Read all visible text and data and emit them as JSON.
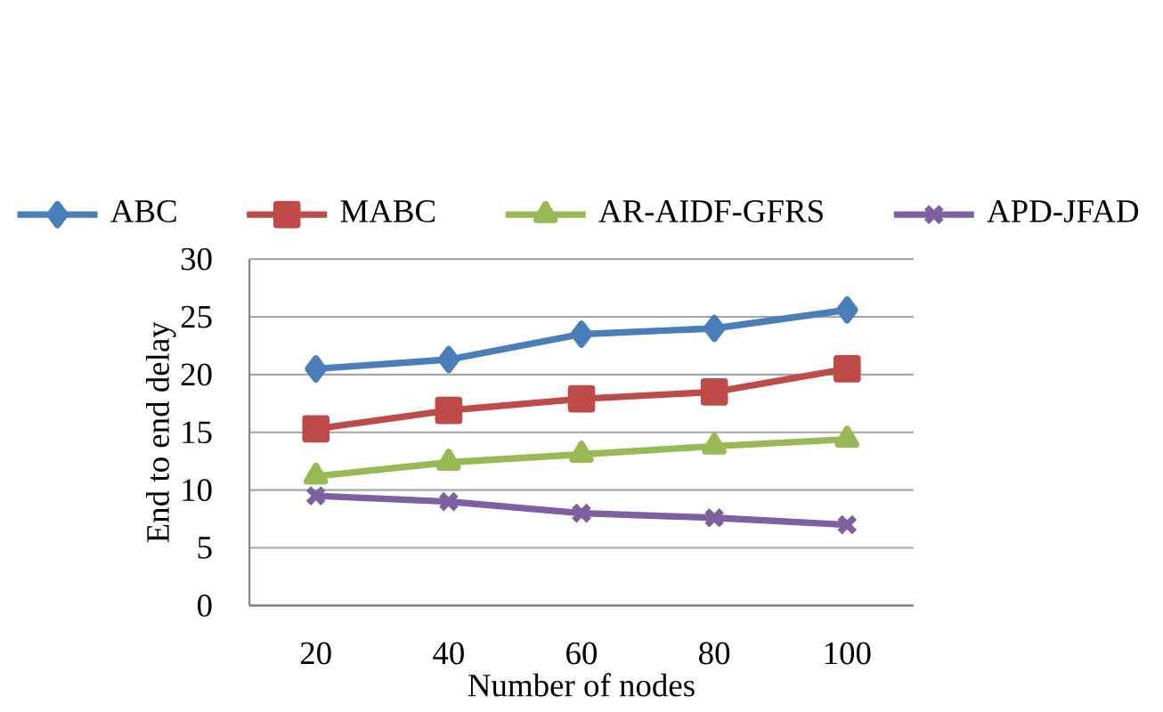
{
  "chart_data": {
    "type": "line",
    "xlabel": "Number of nodes",
    "ylabel": "End to end delay",
    "categories": [
      "20",
      "40",
      "60",
      "80",
      "100"
    ],
    "series": [
      {
        "name": "ABC",
        "color": "#4a7ebb",
        "marker": "diamond",
        "values": [
          20.5,
          21.3,
          23.5,
          24.0,
          25.6
        ]
      },
      {
        "name": "MABC",
        "color": "#be4b48",
        "marker": "square",
        "values": [
          15.3,
          16.9,
          17.9,
          18.5,
          20.5
        ]
      },
      {
        "name": "AR-AIDF-GFRS",
        "color": "#98b954",
        "marker": "triangle",
        "values": [
          11.2,
          12.4,
          13.1,
          13.8,
          14.4
        ]
      },
      {
        "name": "APD-JFAD",
        "color": "#7d60a0",
        "marker": "cross",
        "values": [
          9.5,
          9.0,
          8.0,
          7.6,
          7.0
        ]
      }
    ],
    "ylim": [
      0,
      30
    ],
    "yticks": [
      0,
      5,
      10,
      15,
      20,
      25,
      30
    ],
    "grid": "y",
    "legend": "top",
    "line_style": "solid"
  }
}
